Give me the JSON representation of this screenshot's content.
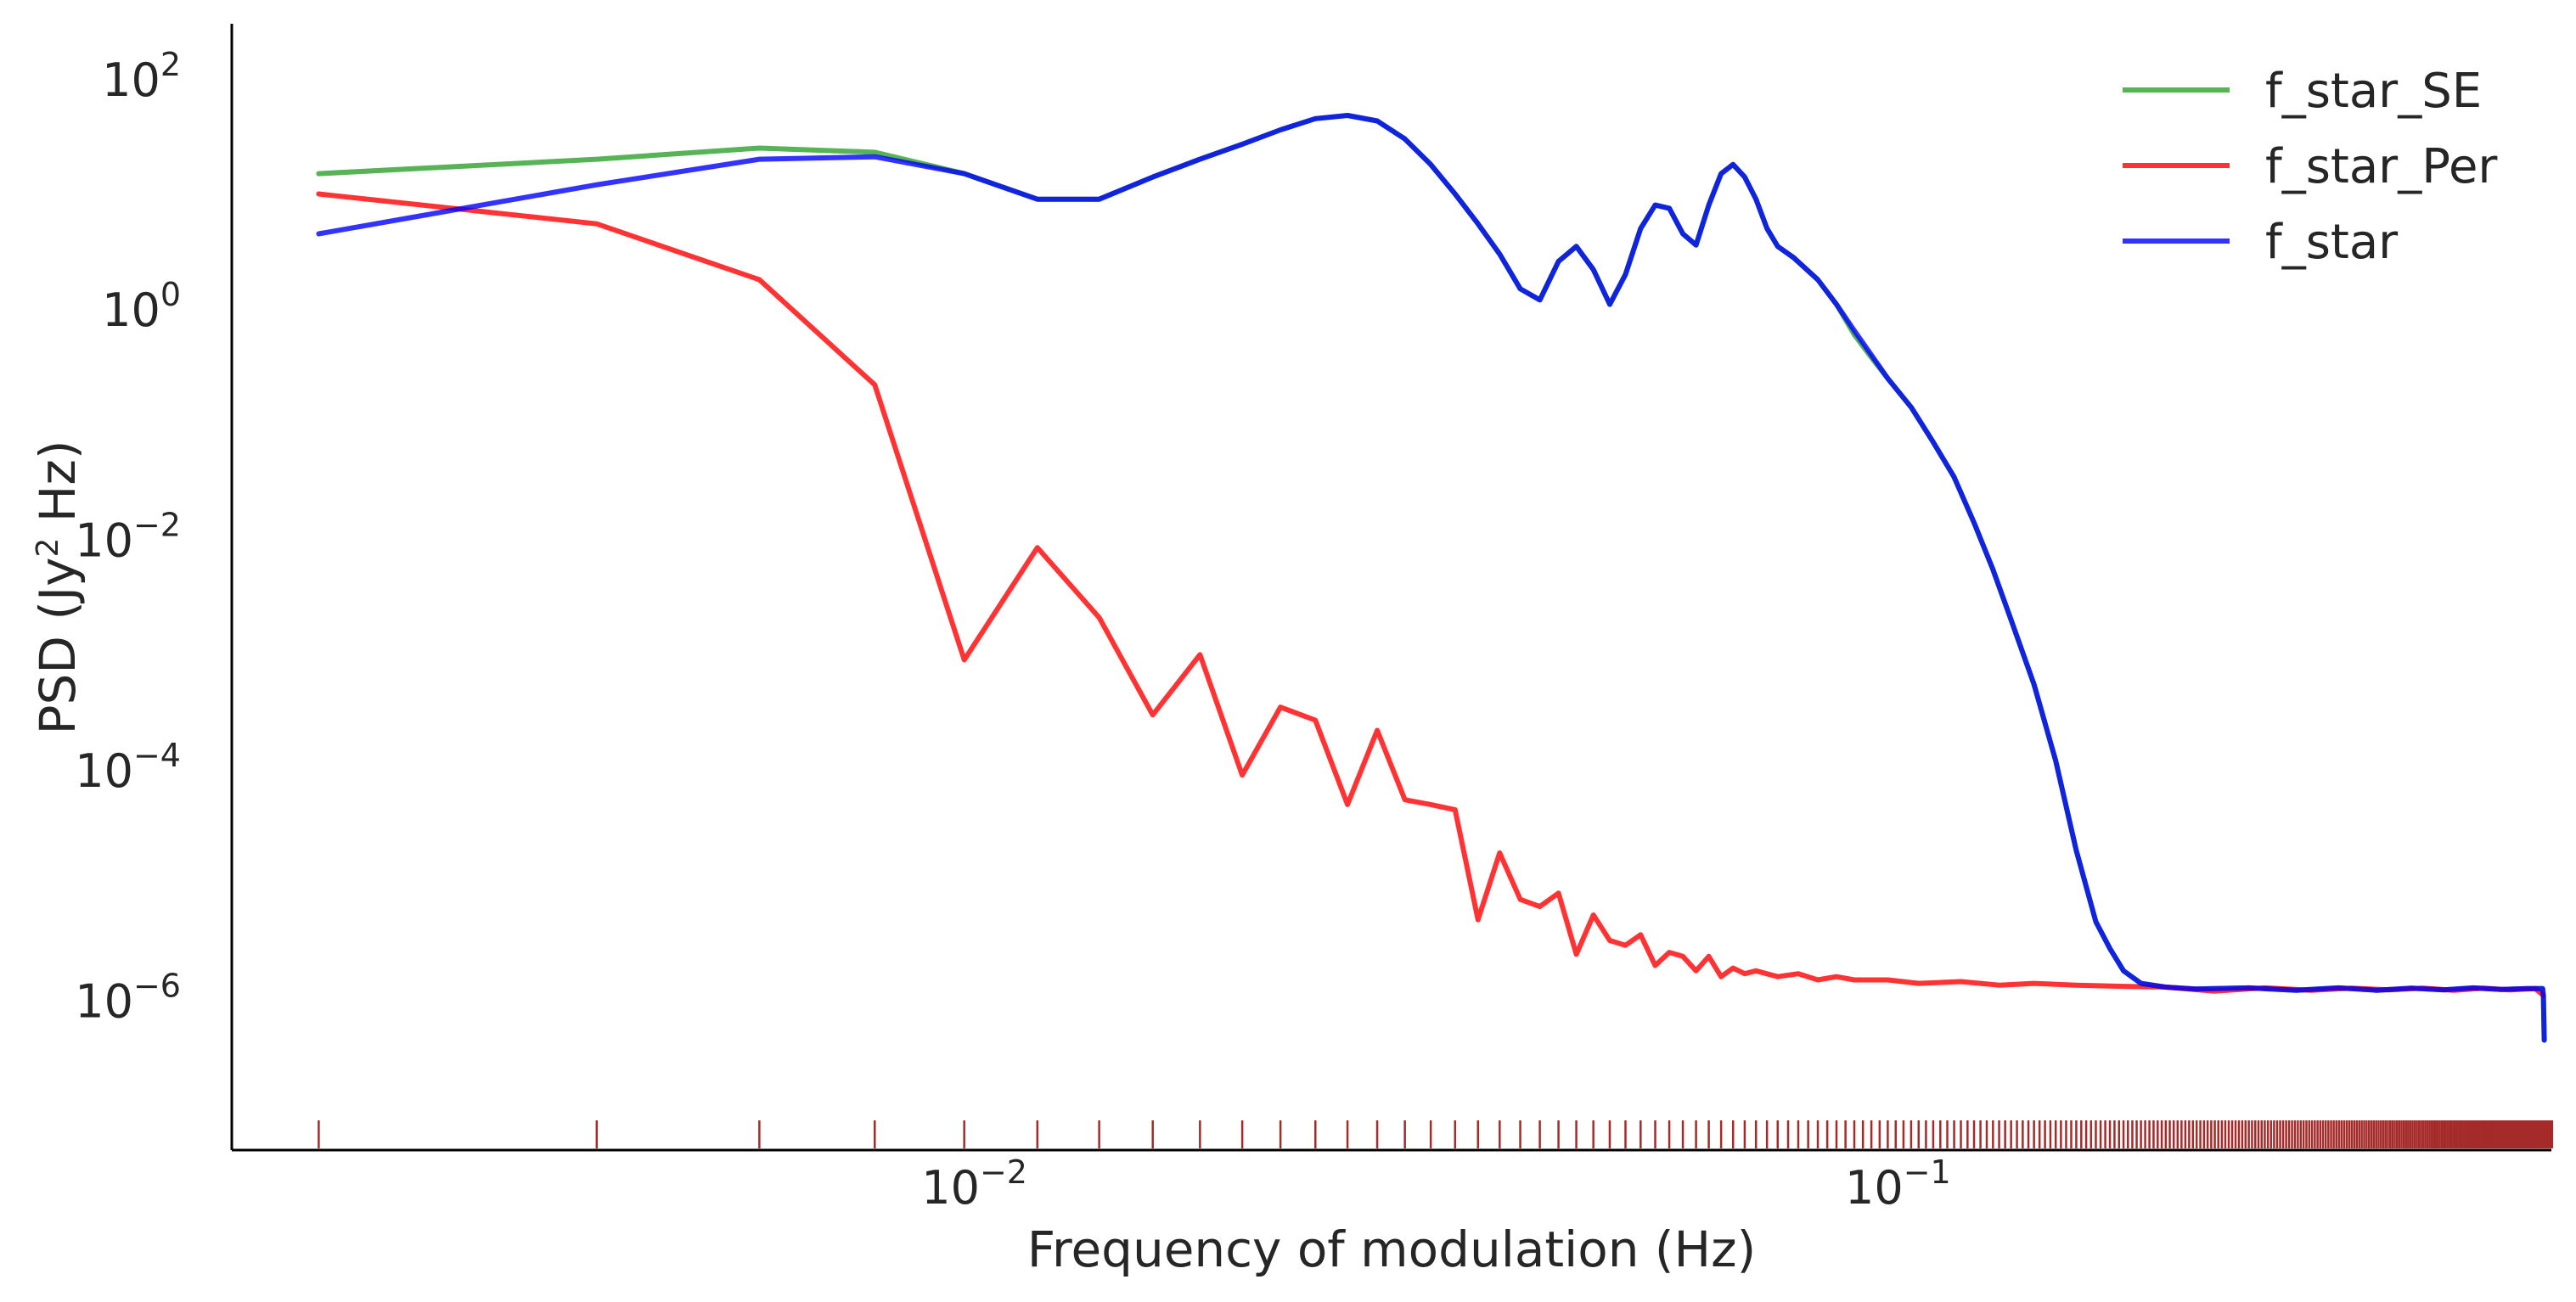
{
  "chart_data": {
    "type": "line",
    "title": "",
    "xlabel": "Frequency of modulation (Hz)",
    "ylabel_main": "PSD (Jy",
    "ylabel_sup": "2",
    "ylabel_tail": " Hz)",
    "x_scale": "log",
    "y_scale": "log",
    "xlim": [
      0.00157,
      0.51
    ],
    "ylim": [
      5e-08,
      300
    ],
    "grid": false,
    "legend_position": "top-right",
    "x_ticks": [
      {
        "value": 0.01,
        "base": "10",
        "exp": "−2"
      },
      {
        "value": 0.1,
        "base": "10",
        "exp": "−1"
      }
    ],
    "y_ticks": [
      {
        "value": 100,
        "base": "10",
        "exp": "2"
      },
      {
        "value": 1,
        "base": "10",
        "exp": "0"
      },
      {
        "value": 0.01,
        "base": "10",
        "exp": "−2"
      },
      {
        "value": 0.0001,
        "base": "10",
        "exp": "−4"
      },
      {
        "value": 1e-06,
        "base": "10",
        "exp": "−6"
      }
    ],
    "rug_color": "#a52a2a",
    "rug_base_frequency": 0.00195,
    "rug_count": 262,
    "series": [
      {
        "name": "f_star_SE",
        "color": "#2ca02c",
        "points": [
          [
            0.00195,
            15
          ],
          [
            0.0039,
            20
          ],
          [
            0.00585,
            25
          ],
          [
            0.0078,
            23
          ],
          [
            0.00975,
            15
          ],
          [
            0.0117,
            9
          ],
          [
            0.01365,
            9
          ],
          [
            0.0156,
            14
          ],
          [
            0.01755,
            20
          ],
          [
            0.0195,
            27
          ],
          [
            0.02145,
            36
          ],
          [
            0.0234,
            45
          ],
          [
            0.02535,
            48
          ],
          [
            0.0273,
            43
          ],
          [
            0.02925,
            30
          ],
          [
            0.0312,
            18
          ],
          [
            0.03315,
            10
          ],
          [
            0.0351,
            5.5
          ],
          [
            0.03705,
            3
          ],
          [
            0.039,
            1.5
          ],
          [
            0.04095,
            1.2
          ],
          [
            0.0429,
            2.6
          ],
          [
            0.04485,
            3.5
          ],
          [
            0.0468,
            2.2
          ],
          [
            0.04875,
            1.1
          ],
          [
            0.0507,
            2
          ],
          [
            0.05265,
            5
          ],
          [
            0.0546,
            8
          ],
          [
            0.05655,
            7.5
          ],
          [
            0.0585,
            4.5
          ],
          [
            0.06045,
            3.6
          ],
          [
            0.0624,
            8
          ],
          [
            0.06435,
            15
          ],
          [
            0.0663,
            18
          ],
          [
            0.06825,
            14
          ],
          [
            0.0702,
            9
          ],
          [
            0.07215,
            5
          ],
          [
            0.0741,
            3.5
          ],
          [
            0.0771,
            2.8
          ],
          [
            0.0819,
            1.8
          ],
          [
            0.0858,
            1.1
          ],
          [
            0.0897,
            0.6
          ],
          [
            0.0936,
            0.38
          ],
          [
            0.0975,
            0.25
          ],
          [
            0.1034,
            0.14
          ],
          [
            0.1092,
            0.07
          ],
          [
            0.115,
            0.035
          ],
          [
            0.1209,
            0.014
          ],
          [
            0.1267,
            0.0055
          ],
          [
            0.1326,
            0.002
          ],
          [
            0.1404,
            0.00055
          ],
          [
            0.1482,
            0.00012
          ],
          [
            0.156,
            2e-05
          ],
          [
            0.1638,
            4.8e-06
          ],
          [
            0.1697,
            2.8e-06
          ],
          [
            0.1755,
            1.8e-06
          ],
          [
            0.1833,
            1.4e-06
          ],
          [
            0.195,
            1.3e-06
          ],
          [
            0.21,
            1.25e-06
          ],
          [
            0.24,
            1.28e-06
          ],
          [
            0.27,
            1.22e-06
          ],
          [
            0.3,
            1.28e-06
          ],
          [
            0.33,
            1.22e-06
          ],
          [
            0.36,
            1.27e-06
          ],
          [
            0.39,
            1.23e-06
          ],
          [
            0.42,
            1.28e-06
          ],
          [
            0.45,
            1.24e-06
          ],
          [
            0.48,
            1.26e-06
          ],
          [
            0.499,
            1.26e-06
          ],
          [
            0.5,
            1.1e-06
          ],
          [
            0.501,
            4.5e-07
          ]
        ]
      },
      {
        "name": "f_star_Per",
        "color": "#ff0000",
        "points": [
          [
            0.00195,
            10
          ],
          [
            0.0039,
            5.5
          ],
          [
            0.00585,
            1.8
          ],
          [
            0.0078,
            0.22
          ],
          [
            0.00975,
            0.0009
          ],
          [
            0.0117,
            0.0085
          ],
          [
            0.01365,
            0.0021
          ],
          [
            0.0156,
            0.0003
          ],
          [
            0.01755,
            0.001
          ],
          [
            0.0195,
            9e-05
          ],
          [
            0.02145,
            0.00035
          ],
          [
            0.0234,
            0.00027
          ],
          [
            0.02535,
            5e-05
          ],
          [
            0.0273,
            0.00022
          ],
          [
            0.02925,
            5.5e-05
          ],
          [
            0.0312,
            5e-05
          ],
          [
            0.03315,
            4.5e-05
          ],
          [
            0.0351,
            5e-06
          ],
          [
            0.03705,
            1.9e-05
          ],
          [
            0.039,
            7.5e-06
          ],
          [
            0.04095,
            6.5e-06
          ],
          [
            0.0429,
            8.5e-06
          ],
          [
            0.04485,
            2.5e-06
          ],
          [
            0.0468,
            5.5e-06
          ],
          [
            0.04875,
            3.3e-06
          ],
          [
            0.0507,
            3e-06
          ],
          [
            0.05265,
            3.7e-06
          ],
          [
            0.0546,
            2e-06
          ],
          [
            0.05655,
            2.6e-06
          ],
          [
            0.0585,
            2.4e-06
          ],
          [
            0.06045,
            1.8e-06
          ],
          [
            0.0624,
            2.4e-06
          ],
          [
            0.06435,
            1.6e-06
          ],
          [
            0.0663,
            1.9e-06
          ],
          [
            0.06825,
            1.7e-06
          ],
          [
            0.0702,
            1.8e-06
          ],
          [
            0.0741,
            1.6e-06
          ],
          [
            0.078,
            1.7e-06
          ],
          [
            0.0819,
            1.5e-06
          ],
          [
            0.0858,
            1.6e-06
          ],
          [
            0.0897,
            1.5e-06
          ],
          [
            0.0975,
            1.5e-06
          ],
          [
            0.1053,
            1.4e-06
          ],
          [
            0.117,
            1.45e-06
          ],
          [
            0.1287,
            1.35e-06
          ],
          [
            0.1404,
            1.4e-06
          ],
          [
            0.156,
            1.35e-06
          ],
          [
            0.1755,
            1.32e-06
          ],
          [
            0.195,
            1.3e-06
          ],
          [
            0.22,
            1.2e-06
          ],
          [
            0.25,
            1.28e-06
          ],
          [
            0.28,
            1.22e-06
          ],
          [
            0.31,
            1.27e-06
          ],
          [
            0.34,
            1.23e-06
          ],
          [
            0.37,
            1.27e-06
          ],
          [
            0.4,
            1.22e-06
          ],
          [
            0.43,
            1.27e-06
          ],
          [
            0.46,
            1.23e-06
          ],
          [
            0.49,
            1.26e-06
          ],
          [
            0.5,
            1.1e-06
          ]
        ]
      },
      {
        "name": "f_star",
        "color": "#0000ff",
        "points": [
          [
            0.00195,
            4.5
          ],
          [
            0.0039,
            12
          ],
          [
            0.00585,
            20
          ],
          [
            0.0078,
            21
          ],
          [
            0.00975,
            15
          ],
          [
            0.0117,
            9
          ],
          [
            0.01365,
            9
          ],
          [
            0.0156,
            14
          ],
          [
            0.01755,
            20
          ],
          [
            0.0195,
            27
          ],
          [
            0.02145,
            36
          ],
          [
            0.0234,
            45
          ],
          [
            0.02535,
            48
          ],
          [
            0.0273,
            43
          ],
          [
            0.02925,
            30
          ],
          [
            0.0312,
            18
          ],
          [
            0.03315,
            10
          ],
          [
            0.0351,
            5.5
          ],
          [
            0.03705,
            3
          ],
          [
            0.039,
            1.5
          ],
          [
            0.04095,
            1.2
          ],
          [
            0.0429,
            2.6
          ],
          [
            0.04485,
            3.5
          ],
          [
            0.0468,
            2.2
          ],
          [
            0.04875,
            1.1
          ],
          [
            0.0507,
            2
          ],
          [
            0.05265,
            5
          ],
          [
            0.0546,
            8
          ],
          [
            0.05655,
            7.5
          ],
          [
            0.0585,
            4.5
          ],
          [
            0.06045,
            3.6
          ],
          [
            0.0624,
            8
          ],
          [
            0.06435,
            15
          ],
          [
            0.0663,
            18
          ],
          [
            0.06825,
            14
          ],
          [
            0.0702,
            9
          ],
          [
            0.07215,
            5
          ],
          [
            0.0741,
            3.5
          ],
          [
            0.0771,
            2.8
          ],
          [
            0.0819,
            1.8
          ],
          [
            0.0858,
            1.1
          ],
          [
            0.0897,
            0.65
          ],
          [
            0.0936,
            0.4
          ],
          [
            0.0975,
            0.25
          ],
          [
            0.1034,
            0.14
          ],
          [
            0.1092,
            0.07
          ],
          [
            0.115,
            0.035
          ],
          [
            0.1209,
            0.014
          ],
          [
            0.1267,
            0.0055
          ],
          [
            0.1326,
            0.002
          ],
          [
            0.1404,
            0.00055
          ],
          [
            0.1482,
            0.00012
          ],
          [
            0.156,
            2e-05
          ],
          [
            0.1638,
            4.8e-06
          ],
          [
            0.1697,
            2.8e-06
          ],
          [
            0.1755,
            1.8e-06
          ],
          [
            0.1833,
            1.4e-06
          ],
          [
            0.195,
            1.3e-06
          ],
          [
            0.21,
            1.25e-06
          ],
          [
            0.24,
            1.28e-06
          ],
          [
            0.27,
            1.22e-06
          ],
          [
            0.3,
            1.28e-06
          ],
          [
            0.33,
            1.22e-06
          ],
          [
            0.36,
            1.27e-06
          ],
          [
            0.39,
            1.23e-06
          ],
          [
            0.42,
            1.28e-06
          ],
          [
            0.45,
            1.24e-06
          ],
          [
            0.48,
            1.26e-06
          ],
          [
            0.499,
            1.26e-06
          ],
          [
            0.5,
            1.1e-06
          ],
          [
            0.501,
            4.5e-07
          ]
        ]
      }
    ]
  }
}
